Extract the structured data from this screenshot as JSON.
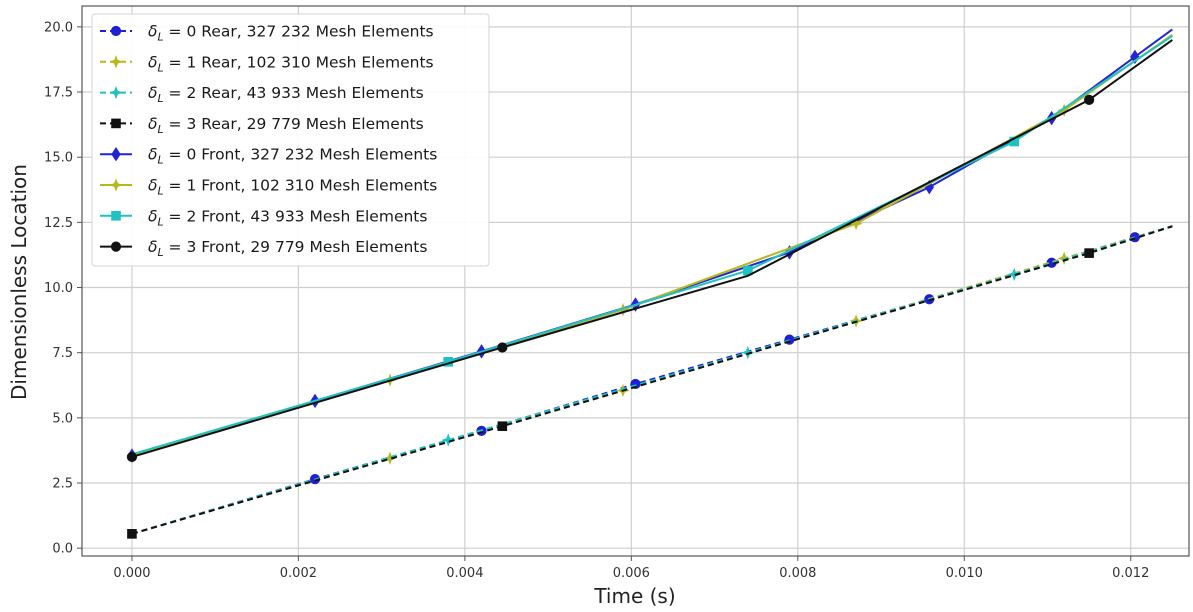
{
  "chart_data": {
    "type": "line",
    "xlabel": "Time (s)",
    "ylabel": "Dimensionless Location",
    "xlim": [
      -0.0006,
      0.0127
    ],
    "ylim": [
      -0.3,
      20.8
    ],
    "xticks": [
      "0.000",
      "0.002",
      "0.004",
      "0.006",
      "0.008",
      "0.010",
      "0.012"
    ],
    "xtick_values": [
      0,
      0.002,
      0.004,
      0.006,
      0.008,
      0.01,
      0.012
    ],
    "yticks": [
      "0.0",
      "2.5",
      "5.0",
      "7.5",
      "10.0",
      "12.5",
      "15.0",
      "17.5",
      "20.0"
    ],
    "ytick_values": [
      0,
      2.5,
      5,
      7.5,
      10,
      12.5,
      15,
      17.5,
      20
    ],
    "grid": true,
    "legend_position": "top-left",
    "series": [
      {
        "legend_prefix": "δ",
        "legend_sub": "L",
        "legend_rest": " = 0 Rear, 327 232 Mesh Elements",
        "color": "#1f1fd6",
        "linestyle": "dashed",
        "marker": "circle",
        "x": [
          0,
          0.0022,
          0.0042,
          0.00605,
          0.0079,
          0.00958,
          0.01105,
          0.01205,
          0.0125
        ],
        "y": [
          0.55,
          2.65,
          4.5,
          6.3,
          8.0,
          9.55,
          10.95,
          11.93,
          12.35
        ],
        "marker_x": [
          0.0022,
          0.0042,
          0.00605,
          0.0079,
          0.00958,
          0.01105,
          0.01205
        ],
        "marker_y": [
          2.65,
          4.5,
          6.3,
          8.0,
          9.55,
          10.95,
          11.93
        ]
      },
      {
        "legend_prefix": "δ",
        "legend_sub": "L",
        "legend_rest": " = 1 Rear, 102 310 Mesh Elements",
        "color": "#b8b81c",
        "linestyle": "dashed",
        "marker": "plus",
        "x": [
          0,
          0.0031,
          0.0059,
          0.0087,
          0.0112,
          0.0125
        ],
        "y": [
          0.55,
          3.45,
          6.05,
          8.72,
          11.12,
          12.35
        ],
        "marker_x": [
          0.0031,
          0.0059,
          0.0087,
          0.0112
        ],
        "marker_y": [
          3.45,
          6.05,
          8.72,
          11.12
        ]
      },
      {
        "legend_prefix": "δ",
        "legend_sub": "L",
        "legend_rest": " = 2 Rear, 43 933 Mesh Elements",
        "color": "#1fc2c2",
        "linestyle": "dashed",
        "marker": "plus",
        "x": [
          0,
          0.0038,
          0.0074,
          0.0106,
          0.0125
        ],
        "y": [
          0.55,
          4.15,
          7.5,
          10.5,
          12.35
        ],
        "marker_x": [
          0.0038,
          0.0074,
          0.0106
        ],
        "marker_y": [
          4.15,
          7.5,
          10.5
        ]
      },
      {
        "legend_prefix": "δ",
        "legend_sub": "L",
        "legend_rest": " = 3 Rear, 29 779 Mesh Elements",
        "color": "#111111",
        "linestyle": "dashed",
        "marker": "square",
        "x": [
          0,
          0.00445,
          0.0115,
          0.0125
        ],
        "y": [
          0.55,
          4.68,
          11.32,
          12.35
        ],
        "marker_x": [
          0,
          0.00445,
          0.0115
        ],
        "marker_y": [
          0.55,
          4.68,
          11.32
        ]
      },
      {
        "legend_prefix": "δ",
        "legend_sub": "L",
        "legend_rest": " = 0 Front, 327 232 Mesh Elements",
        "color": "#2424d6",
        "linestyle": "solid",
        "marker": "diamond",
        "x": [
          0,
          0.0022,
          0.0042,
          0.00605,
          0.0079,
          0.00958,
          0.01105,
          0.01205,
          0.0125
        ],
        "y": [
          3.55,
          5.65,
          7.55,
          9.35,
          11.35,
          13.85,
          16.5,
          18.85,
          19.9
        ],
        "marker_x": [
          0,
          0.0022,
          0.0042,
          0.00605,
          0.0079,
          0.00958,
          0.01105,
          0.01205
        ],
        "marker_y": [
          3.55,
          5.65,
          7.55,
          9.35,
          11.35,
          13.85,
          16.5,
          18.85
        ]
      },
      {
        "legend_prefix": "δ",
        "legend_sub": "L",
        "legend_rest": " = 1 Front, 102 310 Mesh Elements",
        "color": "#b8b81c",
        "linestyle": "solid",
        "marker": "plus",
        "x": [
          0,
          0.0031,
          0.0059,
          0.0087,
          0.0112,
          0.0125
        ],
        "y": [
          3.55,
          6.45,
          9.15,
          12.45,
          16.8,
          19.7
        ],
        "marker_x": [
          0.0031,
          0.0059,
          0.0087,
          0.0112
        ],
        "marker_y": [
          6.45,
          9.15,
          12.45,
          16.8
        ]
      },
      {
        "legend_prefix": "δ",
        "legend_sub": "L",
        "legend_rest": " = 2 Front, 43 933 Mesh Elements",
        "color": "#1fc2c2",
        "linestyle": "solid",
        "marker": "square",
        "x": [
          0,
          0.0038,
          0.0074,
          0.0106,
          0.0125
        ],
        "y": [
          3.6,
          7.15,
          10.65,
          15.6,
          19.65
        ],
        "marker_x": [
          0.0038,
          0.0074,
          0.0106
        ],
        "marker_y": [
          7.15,
          10.65,
          15.6
        ]
      },
      {
        "legend_prefix": "δ",
        "legend_sub": "L",
        "legend_rest": " = 3 Front, 29 779 Mesh Elements",
        "color": "#111111",
        "linestyle": "solid",
        "marker": "circle",
        "x": [
          0,
          0.00445,
          0.0074,
          0.0115,
          0.0125
        ],
        "y": [
          3.5,
          7.7,
          10.45,
          17.2,
          19.5
        ],
        "marker_x": [
          0,
          0.00445,
          0.0115
        ],
        "marker_y": [
          3.5,
          7.7,
          17.2
        ]
      }
    ]
  }
}
